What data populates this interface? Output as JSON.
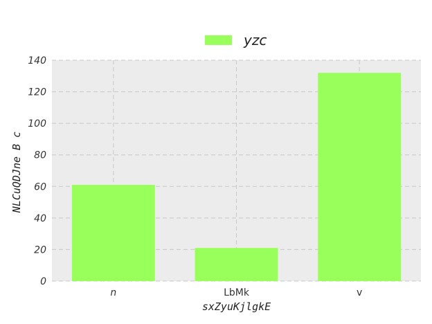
{
  "chart_data": {
    "type": "bar",
    "categories": [
      "n",
      "LbMk",
      "v"
    ],
    "category_italic": [
      true,
      false,
      false
    ],
    "series": [
      {
        "name": "yzc",
        "values": [
          61,
          21,
          132
        ],
        "color": "#99ff5a"
      }
    ],
    "xlabel": "sxZyuKjlgkE",
    "ylabel": "NLCuQDJne B c",
    "ylim": [
      0,
      140
    ],
    "yticks": [
      0,
      20,
      40,
      60,
      80,
      100,
      120,
      140
    ],
    "grid": true,
    "legend": "top-center",
    "plot_background": "#ececec"
  }
}
